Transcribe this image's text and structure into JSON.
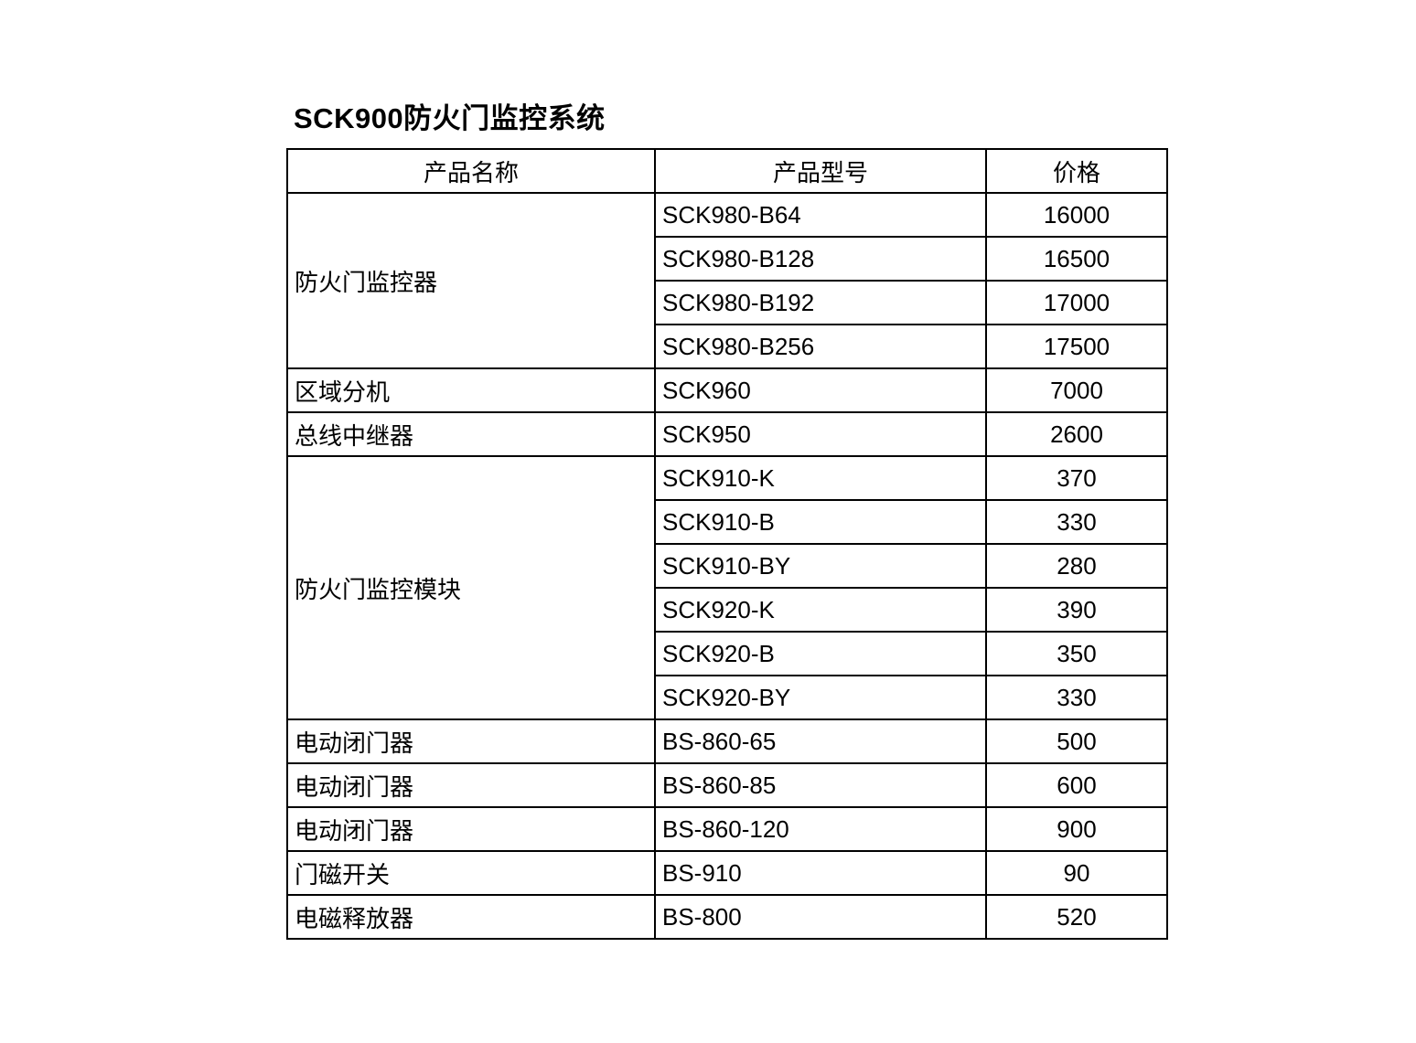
{
  "page": {
    "title": "SCK900防火门监控系统"
  },
  "table": {
    "headers": [
      "产品名称",
      "产品型号",
      "价格"
    ],
    "groups": [
      {
        "name": "防火门监控器",
        "items": [
          {
            "model": "SCK980-B64",
            "price": "16000"
          },
          {
            "model": "SCK980-B128",
            "price": "16500"
          },
          {
            "model": "SCK980-B192",
            "price": "17000"
          },
          {
            "model": "SCK980-B256",
            "price": "17500"
          }
        ]
      },
      {
        "name": "区域分机",
        "items": [
          {
            "model": "SCK960",
            "price": "7000"
          }
        ]
      },
      {
        "name": "总线中继器",
        "items": [
          {
            "model": "SCK950",
            "price": "2600"
          }
        ]
      },
      {
        "name": "防火门监控模块",
        "items": [
          {
            "model": "SCK910-K",
            "price": "370"
          },
          {
            "model": "SCK910-B",
            "price": "330"
          },
          {
            "model": "SCK910-BY",
            "price": "280"
          },
          {
            "model": "SCK920-K",
            "price": "390"
          },
          {
            "model": "SCK920-B",
            "price": "350"
          },
          {
            "model": "SCK920-BY",
            "price": "330"
          }
        ]
      },
      {
        "name": "电动闭门器",
        "items": [
          {
            "model": "BS-860-65",
            "price": "500"
          }
        ]
      },
      {
        "name": "电动闭门器",
        "items": [
          {
            "model": "BS-860-85",
            "price": "600"
          }
        ]
      },
      {
        "name": "电动闭门器",
        "items": [
          {
            "model": "BS-860-120",
            "price": "900"
          }
        ]
      },
      {
        "name": "门磁开关",
        "items": [
          {
            "model": "BS-910",
            "price": "90"
          }
        ]
      },
      {
        "name": "电磁释放器",
        "items": [
          {
            "model": "BS-800",
            "price": "520"
          }
        ]
      }
    ]
  }
}
